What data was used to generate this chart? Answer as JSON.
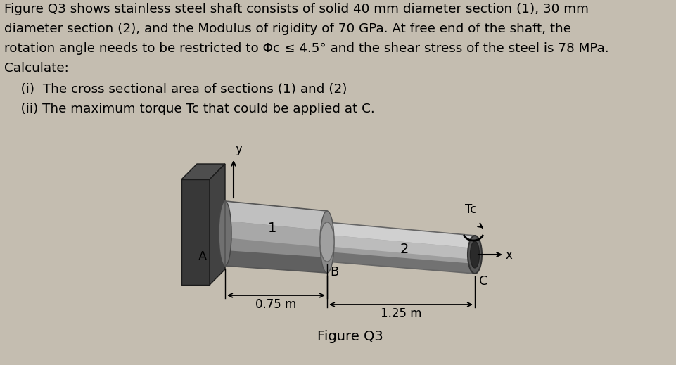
{
  "bg_color": "#c4bdb0",
  "text_color": "#000000",
  "title_text": "Figure Q3",
  "line1": "Figure Q3 shows stainless steel shaft consists of solid 40 mm diameter section (1), 30 mm",
  "line2": "diameter section (2), and the Modulus of rigidity of 70 GPa. At free end of the shaft, the",
  "line3": "rotation angle needs to be restricted to Φc ≤ 4.5° and the shear stress of the steel is 78 MPa.",
  "line4": "Calculate:",
  "item1": "    (i)  The cross sectional area of sections (1) and (2)",
  "item2": "    (ii) The maximum torque Tc that could be applied at C.",
  "label_A": "A",
  "label_B": "B",
  "label_C": "C",
  "label_x": "x",
  "label_y": "y",
  "label_1": "1",
  "label_2": "2",
  "label_Tc": "Tc",
  "label_075": "0.75 m",
  "label_125": "1.25 m"
}
